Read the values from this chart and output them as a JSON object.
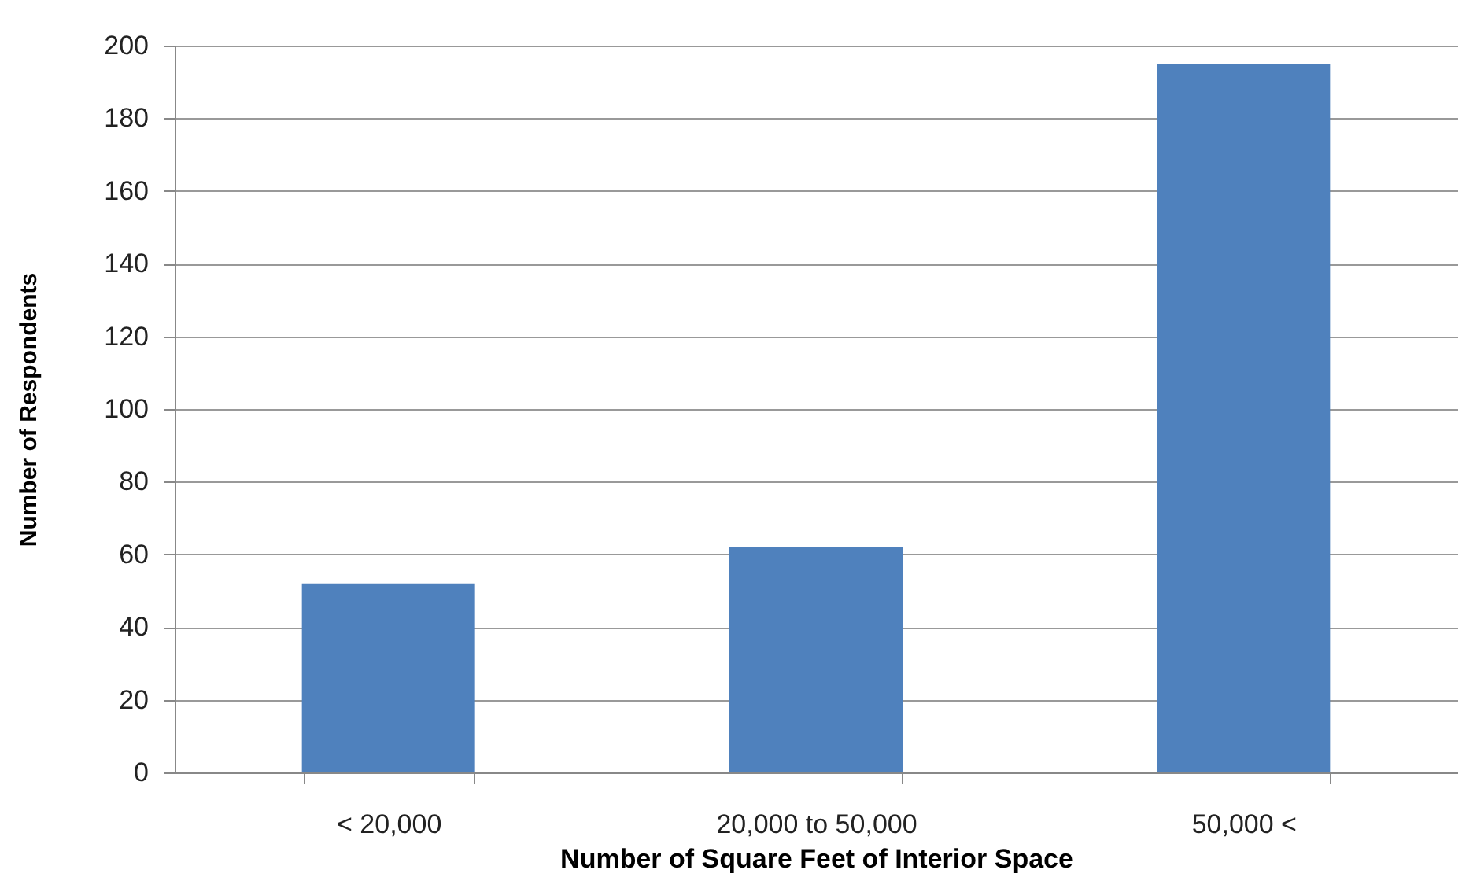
{
  "chart_data": {
    "type": "bar",
    "xlabel": "Number of Square Feet of Interior Space",
    "ylabel": "Number of Respondents",
    "categories": [
      "< 20,000",
      "20,000 to 50,000",
      "50,000 <"
    ],
    "values": [
      52,
      62,
      195
    ],
    "color": "#4f81bd",
    "ylim": [
      0,
      200
    ],
    "yticks": [
      0,
      20,
      40,
      60,
      80,
      100,
      120,
      140,
      160,
      180,
      200
    ],
    "grid": "y"
  }
}
